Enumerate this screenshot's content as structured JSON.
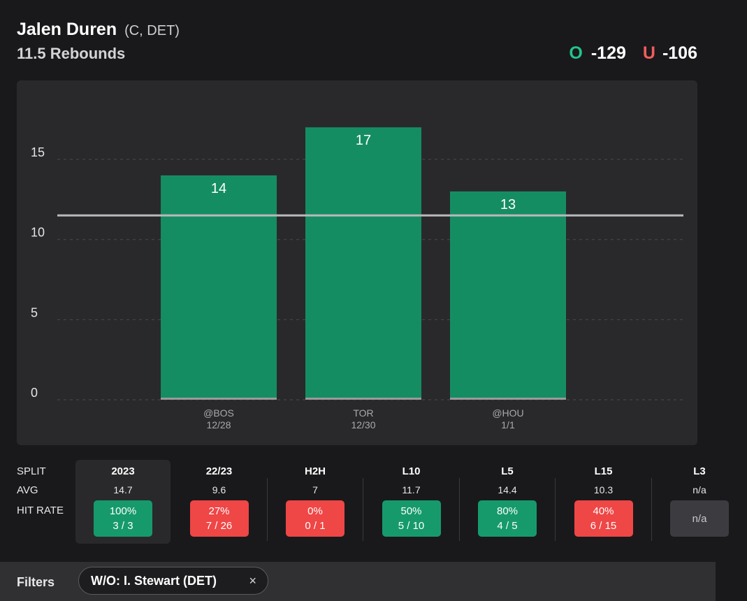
{
  "player": {
    "name": "Jalen Duren",
    "meta": "(C, DET)",
    "prop": "11.5 Rebounds"
  },
  "odds": {
    "over_label": "O",
    "over_value": "-129",
    "under_label": "U",
    "under_value": "-106",
    "over_color": "#23c48a",
    "under_color": "#f25c5c"
  },
  "chart_data": {
    "type": "bar",
    "categories": [
      "@BOS",
      "TOR",
      "@HOU"
    ],
    "dates": [
      "12/28",
      "12/30",
      "1/1"
    ],
    "values": [
      14,
      17,
      13
    ],
    "yticks": [
      0,
      5,
      10,
      15
    ],
    "ylim": [
      0,
      20
    ],
    "line": 11.5,
    "bar_color": "#158d62",
    "title": "",
    "xlabel": "",
    "ylabel": ""
  },
  "splits": {
    "row_labels": {
      "split": "SPLIT",
      "avg": "AVG",
      "hit_rate": "HIT RATE"
    },
    "columns": [
      {
        "label": "2023",
        "avg": "14.7",
        "pct": "100%",
        "frac": "3 / 3",
        "status": "green",
        "selected": true
      },
      {
        "label": "22/23",
        "avg": "9.6",
        "pct": "27%",
        "frac": "7 / 26",
        "status": "red"
      },
      {
        "label": "H2H",
        "avg": "7",
        "pct": "0%",
        "frac": "0 / 1",
        "status": "red"
      },
      {
        "label": "L10",
        "avg": "11.7",
        "pct": "50%",
        "frac": "5 / 10",
        "status": "green"
      },
      {
        "label": "L5",
        "avg": "14.4",
        "pct": "80%",
        "frac": "4 / 5",
        "status": "green"
      },
      {
        "label": "L15",
        "avg": "10.3",
        "pct": "40%",
        "frac": "6 / 15",
        "status": "red"
      },
      {
        "label": "L3",
        "avg": "n/a",
        "pct": "n/a",
        "frac": "",
        "status": "gray"
      }
    ]
  },
  "filters": {
    "title": "Filters",
    "chip_label": "W/O: I. Stewart (DET)",
    "chip_close": "×"
  }
}
